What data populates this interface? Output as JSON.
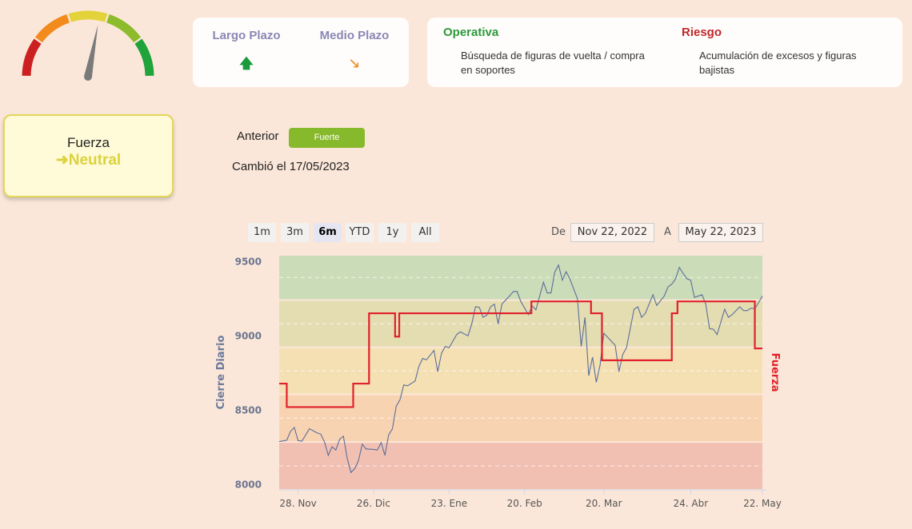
{
  "gauge": {
    "value_fraction": 0.56,
    "colors": [
      "#cc2020",
      "#f28a1c",
      "#e3d23a",
      "#8cbb2c",
      "#1fa33a"
    ]
  },
  "plazo": {
    "largo": {
      "label": "Largo Plazo",
      "arrow": "arrow-up-icon",
      "color": "#1a9a3a"
    },
    "medio": {
      "label": "Medio Plazo",
      "arrow": "arrow-down-right-icon",
      "color": "#f08a1c"
    }
  },
  "operativa": {
    "title": "Operativa",
    "text": "Búsqueda de figuras de vuelta / compra en soportes",
    "color": "#2a9a3a"
  },
  "riesgo": {
    "title": "Riesgo",
    "text": "Acumulación de excesos y figuras bajistas",
    "color": "#c0282a"
  },
  "fuerza": {
    "label": "Fuerza",
    "value": "Neutral",
    "arrow": "➜"
  },
  "anterior": {
    "label": "Anterior",
    "badge": "Fuerte"
  },
  "cambio": "Cambió el 17/05/2023",
  "range": {
    "buttons": [
      "1m",
      "3m",
      "6m",
      "YTD",
      "1y",
      "All"
    ],
    "selected": "6m",
    "from_label": "De",
    "from": "Nov 22, 2022",
    "to_label": "A",
    "to": "May 22, 2023"
  },
  "chart_data": {
    "type": "line",
    "ylabel": "Cierre Diario",
    "y2label": "Fuerza",
    "ylim": [
      7964,
      9545
    ],
    "xlim": [
      0,
      128
    ],
    "yticks": [
      8000,
      8500,
      9000,
      9500
    ],
    "xticks": [
      {
        "x": 5,
        "label": "28. Nov"
      },
      {
        "x": 25,
        "label": "26. Dic"
      },
      {
        "x": 45,
        "label": "23. Ene"
      },
      {
        "x": 65,
        "label": "20. Feb"
      },
      {
        "x": 86,
        "label": "20. Mar"
      },
      {
        "x": 109,
        "label": "24. Abr"
      },
      {
        "x": 128,
        "label": "22. May"
      }
    ],
    "bands": [
      {
        "from": 7964,
        "to": 8286,
        "color": "#f2c0b2"
      },
      {
        "from": 8286,
        "to": 8607,
        "color": "#f8d3b2"
      },
      {
        "from": 8607,
        "to": 8923,
        "color": "#f5e0b4"
      },
      {
        "from": 8923,
        "to": 9241,
        "color": "#e5ddb2"
      },
      {
        "from": 9241,
        "to": 9545,
        "color": "#cbdcb8"
      }
    ],
    "price": {
      "name": "Cierre Diario",
      "color": "#5a6e9a",
      "points": [
        [
          0,
          8289
        ],
        [
          2,
          8298
        ],
        [
          3,
          8357
        ],
        [
          4,
          8384
        ],
        [
          5,
          8295
        ],
        [
          6,
          8291
        ],
        [
          8,
          8375
        ],
        [
          10,
          8348
        ],
        [
          11,
          8339
        ],
        [
          12,
          8286
        ],
        [
          13,
          8196
        ],
        [
          14,
          8254
        ],
        [
          15,
          8232
        ],
        [
          16,
          8304
        ],
        [
          17,
          8325
        ],
        [
          18,
          8179
        ],
        [
          19,
          8080
        ],
        [
          20,
          8107
        ],
        [
          21,
          8161
        ],
        [
          22,
          8271
        ],
        [
          23,
          8239
        ],
        [
          25,
          8236
        ],
        [
          26,
          8232
        ],
        [
          27,
          8282
        ],
        [
          28,
          8196
        ],
        [
          29,
          8334
        ],
        [
          30,
          8375
        ],
        [
          31,
          8527
        ],
        [
          32,
          8571
        ],
        [
          33,
          8670
        ],
        [
          34,
          8664
        ],
        [
          36,
          8696
        ],
        [
          37,
          8795
        ],
        [
          38,
          8848
        ],
        [
          39,
          8839
        ],
        [
          41,
          8902
        ],
        [
          42,
          8759
        ],
        [
          43,
          8884
        ],
        [
          44,
          8929
        ],
        [
          45,
          8920
        ],
        [
          47,
          9009
        ],
        [
          48,
          9027
        ],
        [
          50,
          9000
        ],
        [
          51,
          9080
        ],
        [
          52,
          9196
        ],
        [
          53,
          9193
        ],
        [
          54,
          9125
        ],
        [
          55,
          9139
        ],
        [
          56,
          9196
        ],
        [
          57,
          9214
        ],
        [
          58,
          9080
        ],
        [
          59,
          9214
        ],
        [
          61,
          9268
        ],
        [
          62,
          9298
        ],
        [
          63,
          9300
        ],
        [
          64,
          9232
        ],
        [
          66,
          9143
        ],
        [
          67,
          9202
        ],
        [
          68,
          9175
        ],
        [
          69,
          9268
        ],
        [
          70,
          9361
        ],
        [
          71,
          9289
        ],
        [
          72,
          9289
        ],
        [
          73,
          9429
        ],
        [
          74,
          9477
        ],
        [
          75,
          9375
        ],
        [
          76,
          9432
        ],
        [
          77,
          9384
        ],
        [
          79,
          9250
        ],
        [
          80,
          8929
        ],
        [
          81,
          9125
        ],
        [
          82,
          8732
        ],
        [
          83,
          8857
        ],
        [
          84,
          8688
        ],
        [
          85,
          8804
        ],
        [
          86,
          9018
        ],
        [
          88,
          8964
        ],
        [
          89,
          8937
        ],
        [
          90,
          8759
        ],
        [
          91,
          8875
        ],
        [
          92,
          8920
        ],
        [
          94,
          9179
        ],
        [
          95,
          9196
        ],
        [
          96,
          9125
        ],
        [
          97,
          9152
        ],
        [
          99,
          9277
        ],
        [
          100,
          9205
        ],
        [
          102,
          9268
        ],
        [
          103,
          9330
        ],
        [
          104,
          9348
        ],
        [
          105,
          9384
        ],
        [
          106,
          9461
        ],
        [
          107,
          9420
        ],
        [
          108,
          9384
        ],
        [
          109,
          9375
        ],
        [
          110,
          9259
        ],
        [
          112,
          9277
        ],
        [
          113,
          9214
        ],
        [
          114,
          9048
        ],
        [
          115,
          9045
        ],
        [
          116,
          9009
        ],
        [
          118,
          9179
        ],
        [
          119,
          9125
        ],
        [
          120,
          9143
        ],
        [
          122,
          9196
        ],
        [
          123,
          9170
        ],
        [
          124,
          9170
        ],
        [
          125,
          9187
        ],
        [
          126,
          9182
        ],
        [
          128,
          9268
        ]
      ]
    },
    "fuerza": {
      "name": "Fuerza",
      "color": "#e0202a",
      "steps": [
        [
          0,
          8679
        ],
        [
          2,
          8521
        ],
        [
          19.6,
          8679
        ],
        [
          23.8,
          9152
        ],
        [
          30.7,
          8995
        ],
        [
          31.8,
          9152
        ],
        [
          66.8,
          9232
        ],
        [
          82.6,
          9152
        ],
        [
          85.5,
          8836
        ],
        [
          104,
          9152
        ],
        [
          105.5,
          9232
        ],
        [
          126,
          8916
        ],
        [
          128,
          8916
        ]
      ]
    }
  }
}
